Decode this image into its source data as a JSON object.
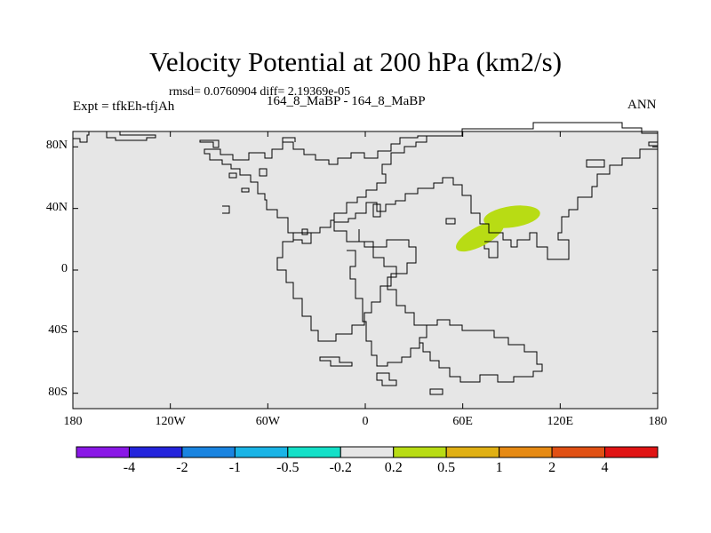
{
  "title": "Velocity Potential at 200 hPa (km2/s)",
  "stats": "rmsd= 0.0760904 diff= 2.19369e-05",
  "case_label": "164_8_MaBP - 164_8_MaBP",
  "expt_label": "Expt = tfkEh-tfjAh",
  "season": "ANN",
  "colors": {
    "ocean_fill": "#e6e6e6",
    "coast": "#000000",
    "anomaly": "#b8dc14"
  },
  "map": {
    "lat_ticks": [
      {
        "value": 80,
        "label": "80N"
      },
      {
        "value": 40,
        "label": "40N"
      },
      {
        "value": 0,
        "label": "0"
      },
      {
        "value": -40,
        "label": "40S"
      },
      {
        "value": -80,
        "label": "80S"
      }
    ],
    "lon_ticks": [
      {
        "value": -180,
        "label": "180"
      },
      {
        "value": -120,
        "label": "120W"
      },
      {
        "value": -60,
        "label": "60W"
      },
      {
        "value": 0,
        "label": "0"
      },
      {
        "value": 60,
        "label": "60E"
      },
      {
        "value": 120,
        "label": "120E"
      },
      {
        "value": 180,
        "label": "180"
      }
    ]
  },
  "colorbar": {
    "colors": [
      "#8a18e6",
      "#2424dc",
      "#1a84e0",
      "#1ab4e6",
      "#14e0c8",
      "#e6e6e6",
      "#b8dc14",
      "#e0b014",
      "#e68a14",
      "#e05014",
      "#e01414"
    ],
    "labels": [
      "-4",
      "-2",
      "-1",
      "-0.5",
      "-0.2",
      "0.2",
      "0.5",
      "1",
      "2",
      "4"
    ]
  }
}
